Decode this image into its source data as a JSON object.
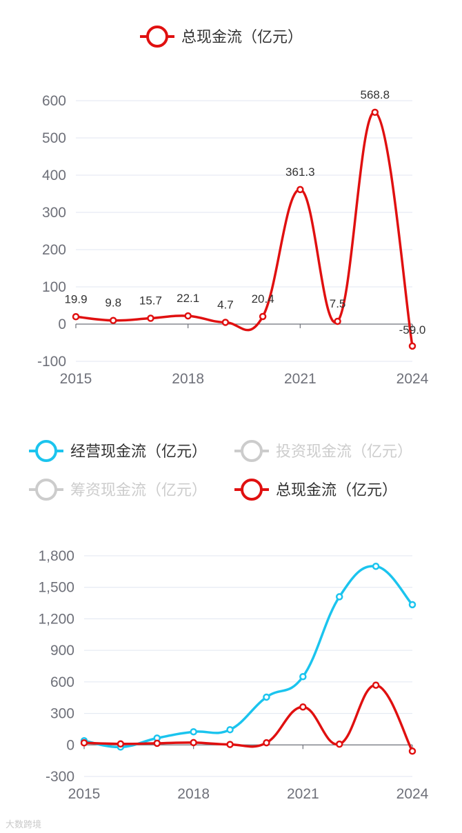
{
  "chart_data": [
    {
      "type": "line",
      "x": [
        "2015",
        "2016",
        "2017",
        "2018",
        "2019",
        "2020",
        "2021",
        "2022",
        "2023",
        "2024"
      ],
      "x_tick_labels": [
        "2015",
        "2018",
        "2021",
        "2024"
      ],
      "y_tick_labels": [
        "-100",
        "0",
        "100",
        "200",
        "300",
        "400",
        "500",
        "600"
      ],
      "ylim": [
        -100,
        600
      ],
      "grid": true,
      "legend_position": "top",
      "legend": [
        {
          "label": "总现金流（亿元）",
          "color": "#e01010",
          "active": true
        }
      ],
      "series": [
        {
          "name": "总现金流（亿元）",
          "color": "#e01010",
          "values": [
            19.9,
            9.8,
            15.7,
            22.1,
            4.7,
            20.4,
            361.3,
            7.5,
            568.8,
            -59.0
          ],
          "data_labels": [
            "19.9",
            "9.8",
            "15.7",
            "22.1",
            "4.7",
            "20.4",
            "361.3",
            "7.5",
            "568.8",
            "-59.0"
          ]
        }
      ]
    },
    {
      "type": "line",
      "x": [
        "2015",
        "2016",
        "2017",
        "2018",
        "2019",
        "2020",
        "2021",
        "2022",
        "2023",
        "2024"
      ],
      "x_tick_labels": [
        "2015",
        "2018",
        "2021",
        "2024"
      ],
      "y_tick_labels": [
        "-300",
        "0",
        "300",
        "600",
        "900",
        "1,200",
        "1,500",
        "1,800"
      ],
      "ylim": [
        -300,
        1800
      ],
      "grid": true,
      "legend_position": "top",
      "legend": [
        {
          "label": "经营现金流（亿元）",
          "color": "#1bc4ee",
          "active": true
        },
        {
          "label": "投资现金流（亿元）",
          "color": "#cccccc",
          "active": false
        },
        {
          "label": "筹资现金流（亿元）",
          "color": "#cccccc",
          "active": false
        },
        {
          "label": "总现金流（亿元）",
          "color": "#e01010",
          "active": true
        }
      ],
      "series": [
        {
          "name": "经营现金流（亿元）",
          "color": "#1bc4ee",
          "values": [
            40,
            -20,
            65,
            125,
            145,
            455,
            650,
            1410,
            1700,
            1335
          ]
        },
        {
          "name": "总现金流（亿元）",
          "color": "#e01010",
          "values": [
            19.9,
            9.8,
            15.7,
            22.1,
            4.7,
            20.4,
            361.3,
            7.5,
            568.8,
            -59.0
          ]
        }
      ]
    }
  ],
  "watermark": "大数跨境"
}
